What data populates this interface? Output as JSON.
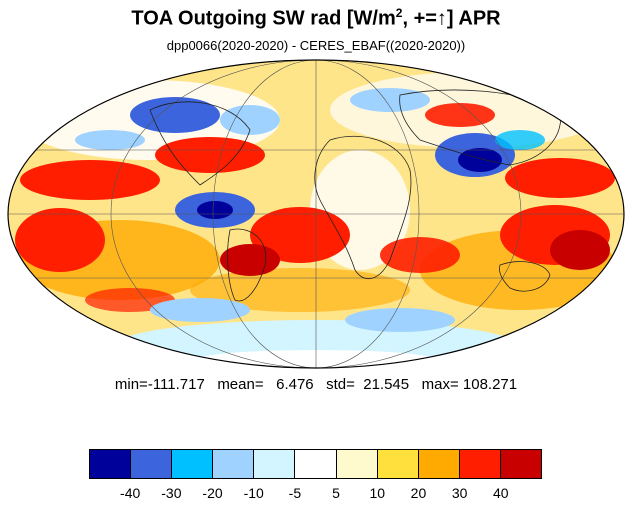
{
  "title": {
    "main": "TOA Outgoing SW rad [W/m",
    "sup": "2",
    "tail": ", +=↑] APR"
  },
  "subtitle": "dpp0066(2020-2020) - CERES_EBAF((2020-2020))",
  "stats": {
    "min": "-111.717",
    "mean": "6.476",
    "std": "21.545",
    "max": "108.271",
    "text": "min=-111.717   mean=   6.476   std=  21.545   max= 108.271"
  },
  "colorbar": {
    "colors": [
      "#00009a",
      "#3c64dc",
      "#00c0ff",
      "#a0d2ff",
      "#d2f5ff",
      "#ffffff",
      "#fffacd",
      "#ffe03c",
      "#ffaa00",
      "#ff1e00",
      "#c80000"
    ],
    "labels": [
      "-40",
      "-30",
      "-20",
      "-10",
      "-5",
      "5",
      "10",
      "20",
      "30",
      "40"
    ]
  },
  "map": {
    "projection": "mollweide",
    "grid": true,
    "coastlines": true,
    "colormap_note": "Difference field of outgoing shortwave radiation, shaded with the colorbar palette"
  }
}
